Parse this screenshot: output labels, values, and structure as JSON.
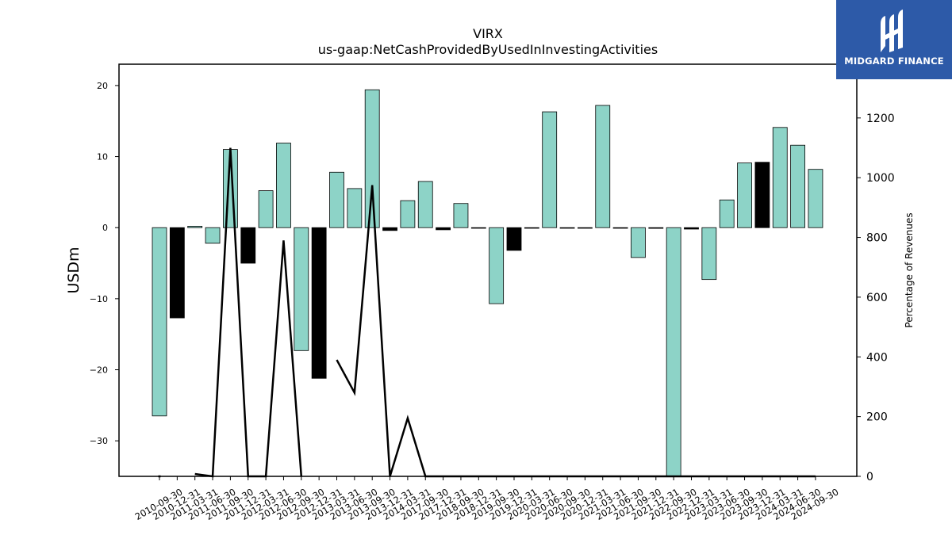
{
  "chart_data": {
    "type": "bar",
    "title": "VIRX",
    "subtitle": "us-gaap:NetCashProvidedByUsedInInvestingActivities",
    "ylabel": "USDm",
    "y2label": "Percentage of Revenues",
    "ylim": [
      -35,
      23
    ],
    "y2lim": [
      0,
      1380
    ],
    "yticks": [
      20,
      10,
      0,
      -10,
      -20,
      -30
    ],
    "y2ticks": [
      0,
      200,
      400,
      600,
      800,
      1000,
      1200
    ],
    "categories": [
      "2010-09-30",
      "2010-12-31",
      "2011-03-31",
      "2011-06-30",
      "2011-09-30",
      "2011-12-31",
      "2012-03-31",
      "2012-06-30",
      "2012-09-30",
      "2012-12-31",
      "2013-03-31",
      "2013-06-30",
      "2013-09-30",
      "2013-12-31",
      "2014-03-31",
      "2017-09-30",
      "2017-12-31",
      "2018-09-30",
      "2018-12-31",
      "2019-09-30",
      "2019-12-31",
      "2020-03-31",
      "2020-06-30",
      "2020-09-30",
      "2020-12-31",
      "2021-03-31",
      "2021-06-30",
      "2021-09-30",
      "2021-12-31",
      "2022-09-30",
      "2022-12-31",
      "2023-03-31",
      "2023-06-30",
      "2023-09-30",
      "2023-12-31",
      "2024-03-31",
      "2024-06-30",
      "2024-09-30"
    ],
    "series": [
      {
        "type": "bar",
        "values": [
          -26.5,
          -12.7,
          0.2,
          -2.2,
          11.0,
          -5.0,
          5.2,
          11.9,
          -17.3,
          -21.2,
          7.8,
          5.5,
          19.4,
          -0.4,
          3.8,
          6.5,
          -0.3,
          3.4,
          0.0,
          -10.7,
          -3.2,
          0.0,
          16.3,
          0.0,
          0.0,
          17.2,
          0.0,
          -4.2,
          -0.1,
          -35.0,
          -0.2,
          -7.3,
          3.9,
          9.1,
          9.2,
          14.1,
          11.6,
          8.2
        ],
        "bar_colors": [
          "#8dd3c7",
          "#000000",
          "#8dd3c7",
          "#8dd3c7",
          "#8dd3c7",
          "#000000",
          "#8dd3c7",
          "#8dd3c7",
          "#8dd3c7",
          "#000000",
          "#8dd3c7",
          "#8dd3c7",
          "#8dd3c7",
          "#000000",
          "#8dd3c7",
          "#8dd3c7",
          "#000000",
          "#8dd3c7",
          "#8dd3c7",
          "#8dd3c7",
          "#000000",
          "#8dd3c7",
          "#8dd3c7",
          "#8dd3c7",
          "#8dd3c7",
          "#8dd3c7",
          "#8dd3c7",
          "#8dd3c7",
          "#000000",
          "#8dd3c7",
          "#000000",
          "#8dd3c7",
          "#8dd3c7",
          "#8dd3c7",
          "#000000",
          "#8dd3c7",
          "#8dd3c7",
          "#8dd3c7"
        ]
      },
      {
        "type": "line",
        "axis": "right",
        "color": "#000000",
        "values": [
          0,
          null,
          8,
          0,
          1100,
          0,
          0,
          790,
          0,
          null,
          390,
          280,
          975,
          0,
          195,
          0,
          0,
          0,
          0,
          0,
          0,
          0,
          0,
          0,
          0,
          0,
          0,
          0,
          0,
          0,
          0,
          0,
          0,
          0,
          0,
          0,
          0,
          0
        ]
      }
    ],
    "grid": false,
    "legend": "none"
  },
  "brand": {
    "name": "MIDGARD FINANCE",
    "background": "#2d5aa8",
    "text_color": "#ffffff"
  },
  "colors": {
    "bar_positive": "#8dd3c7",
    "bar_dark": "#000000",
    "line": "#000000"
  }
}
